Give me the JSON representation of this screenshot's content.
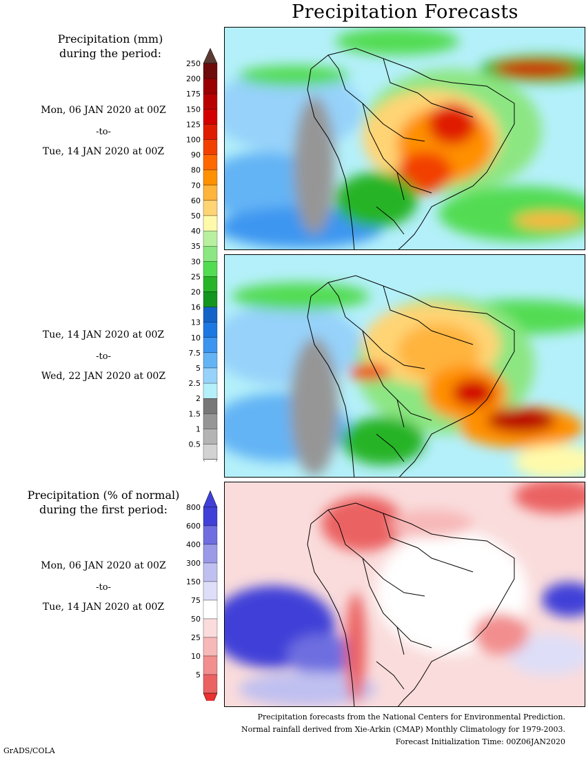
{
  "title": "Precipitation Forecasts",
  "left": {
    "amount_heading_line1": "Precipitation (mm)",
    "amount_heading_line2": "during the period:",
    "period1": {
      "start": "Mon, 06 JAN 2020 at 00Z",
      "to": "-to-",
      "end": "Tue, 14 JAN 2020 at 00Z"
    },
    "period2": {
      "start": "Tue, 14 JAN 2020 at 00Z",
      "to": "-to-",
      "end": "Wed, 22 JAN 2020 at 00Z"
    },
    "percent_heading_line1": "Precipitation (% of normal)",
    "percent_heading_line2": "during the first period:",
    "period3": {
      "start": "Mon, 06 JAN 2020 at 00Z",
      "to": "-to-",
      "end": "Tue, 14 JAN 2020 at 00Z"
    }
  },
  "precip_legend": {
    "labels": [
      "250",
      "200",
      "175",
      "150",
      "125",
      "100",
      "90",
      "80",
      "70",
      "60",
      "50",
      "40",
      "35",
      "30",
      "25",
      "20",
      "16",
      "13",
      "10",
      "7.5",
      "5",
      "2.5",
      "2",
      "1.5",
      "1",
      "0.5"
    ],
    "colors": [
      "#6e0c0c",
      "#9a0000",
      "#b90000",
      "#d20000",
      "#e01c00",
      "#f24000",
      "#ff6800",
      "#ff9000",
      "#ffb43c",
      "#ffd474",
      "#fffaaa",
      "#b8f0a0",
      "#8ce682",
      "#52dc52",
      "#28b428",
      "#14961e",
      "#1464c8",
      "#1e78e1",
      "#3c96f0",
      "#64b4f5",
      "#96d2fa",
      "#b4f0fa",
      "#787878",
      "#969696",
      "#b4b4b4",
      "#d2d2d2"
    ]
  },
  "percent_legend": {
    "labels": [
      "800",
      "600",
      "400",
      "300",
      "150",
      "75",
      "50",
      "25",
      "10",
      "5"
    ],
    "colors": [
      "#4040d8",
      "#6e6ee0",
      "#9a9ae8",
      "#c0c0f0",
      "#dedef8",
      "#ffffff",
      "#fadcdc",
      "#f7b8b8",
      "#f28e8e",
      "#eb6262"
    ]
  },
  "footer": {
    "line1": "Precipitation forecasts from the National Centers for Environmental Prediction.",
    "line2": "Normal rainfall derived from Xie-Arkin (CMAP) Monthly Climatology for 1979-2003.",
    "line3": "Forecast Initialization Time: 00Z06JAN2020"
  },
  "credit": "GrADS/COLA"
}
